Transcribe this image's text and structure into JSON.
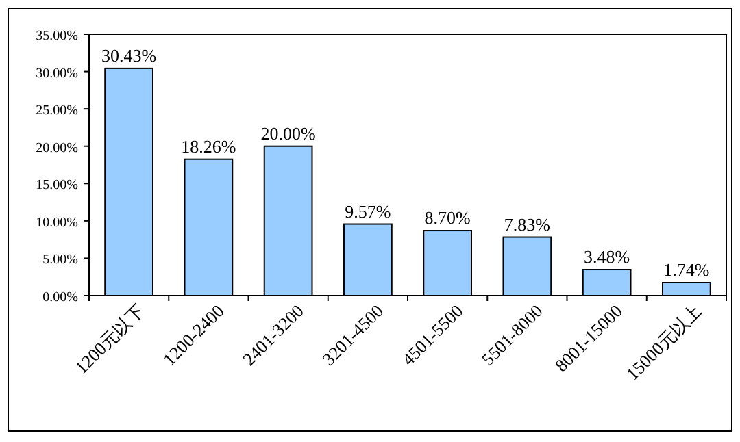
{
  "chart_data": {
    "type": "bar",
    "categories": [
      "1200元以下",
      "1200-2400",
      "2401-3200",
      "3201-4500",
      "4501-5500",
      "5501-8000",
      "8001-15000",
      "15000元以上"
    ],
    "values": [
      30.43,
      18.26,
      20.0,
      9.57,
      8.7,
      7.83,
      3.48,
      1.74
    ],
    "value_labels": [
      "30.43%",
      "18.26%",
      "20.00%",
      "9.57%",
      "8.70%",
      "7.83%",
      "3.48%",
      "1.74%"
    ],
    "color": "#99ccff",
    "ylim": [
      0,
      35
    ],
    "yticks": [
      {
        "value": 0,
        "label": "0.00%"
      },
      {
        "value": 5,
        "label": "5.00%"
      },
      {
        "value": 10,
        "label": "10.00%"
      },
      {
        "value": 15,
        "label": "15.00%"
      },
      {
        "value": 20,
        "label": "20.00%"
      },
      {
        "value": 25,
        "label": "25.00%"
      },
      {
        "value": 30,
        "label": "30.00%"
      },
      {
        "value": 35,
        "label": "35.00%"
      }
    ],
    "grid": false
  }
}
